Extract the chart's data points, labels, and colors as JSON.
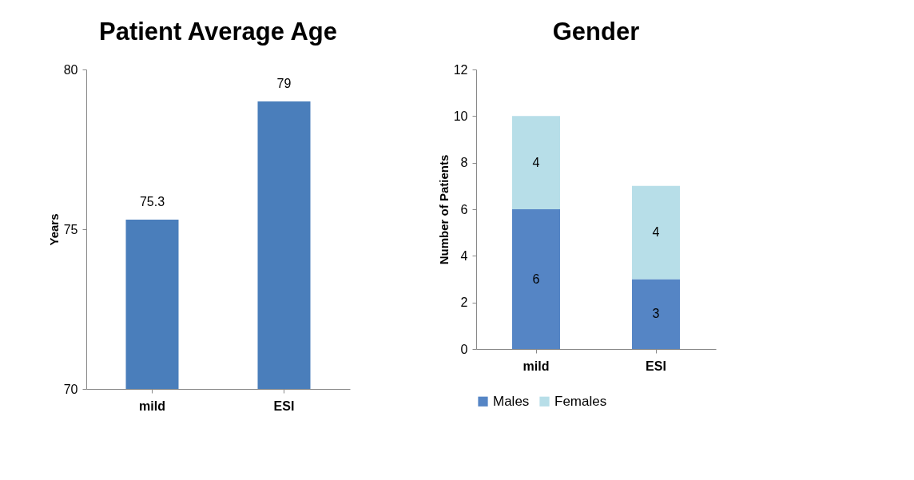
{
  "chart_data": [
    {
      "type": "bar",
      "title": "Patient Average Age",
      "ylabel": "Years",
      "categories": [
        "mild",
        "ESI"
      ],
      "values": [
        75.3,
        79
      ],
      "color": "#4a7ebb",
      "ylim": [
        70,
        80
      ],
      "yticks": [
        70,
        75,
        80
      ],
      "data_labels": true,
      "grid": false,
      "legend": false
    },
    {
      "type": "bar",
      "title": "Gender",
      "ylabel": "Number of Patients",
      "categories": [
        "mild",
        "ESI"
      ],
      "stacked": true,
      "ylim": [
        0,
        12
      ],
      "yticks": [
        0,
        2,
        4,
        6,
        8,
        10,
        12
      ],
      "data_labels": true,
      "grid": false,
      "legend": "bottom",
      "series": [
        {
          "name": "Males",
          "color": "#5585c5",
          "values": [
            6,
            3
          ]
        },
        {
          "name": "Females",
          "color": "#b7dee8",
          "values": [
            4,
            4
          ]
        }
      ]
    }
  ]
}
